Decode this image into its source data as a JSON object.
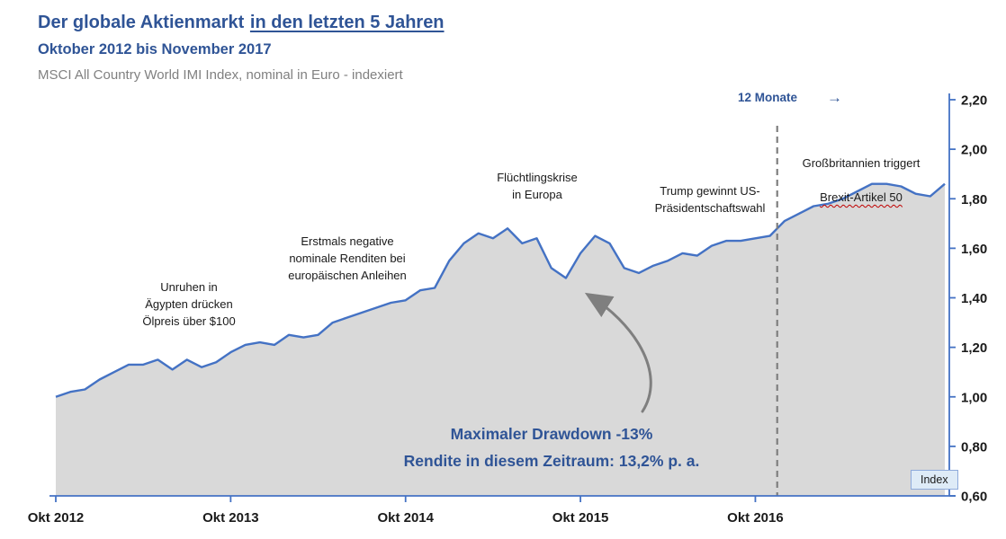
{
  "header": {
    "title_main": "Der globale Aktienmarkt",
    "title_underlined": "in den letzten 5 Jahren",
    "subtitle": "Oktober 2012 bis November 2017",
    "source_line": "MSCI All Country World IMI Index, nominal in Euro - indexiert"
  },
  "colors": {
    "title_blue": "#2F5496",
    "line_blue": "#4472C4",
    "area_gray": "#D9D9D9",
    "dashed_gray": "#7F7F7F",
    "annotation_text": "#1A1A1A",
    "badge_fill": "#DEEBF7",
    "badge_border": "#8EAADB",
    "wavy_underline_red": "#C00000"
  },
  "annotations": {
    "egypt": {
      "text": "Unruhen in\nÄgypten drücken\nÖlpreis über $100"
    },
    "bonds": {
      "text": "Erstmals negative\nnominale Renditen bei\neuropäischen Anleihen"
    },
    "refugees": {
      "text": "Flüchtlingskrise\nin Europa"
    },
    "trump": {
      "text": "Trump gewinnt US-\nPräsidentschaftswahl"
    },
    "brexit": {
      "line1": "Großbritannien triggert",
      "line2": "Brexit-Artikel 50"
    },
    "twelve_months": {
      "label": "12 Monate",
      "arrow_icon": "→"
    },
    "drawdown": {
      "line1": "Maximaler Drawdown -13%",
      "line2": "Rendite in diesem Zeitraum: 13,2% p. a."
    },
    "index_badge": "Index"
  },
  "chart_data": {
    "type": "area",
    "title": "Der globale Aktienmarkt in den letzten 5 Jahren",
    "subtitle": "Oktober 2012 bis November 2017",
    "series_name": "MSCI All Country World IMI Index, nominal in Euro - indexiert",
    "x_unit": "month",
    "x_start": "Okt 2012",
    "x_end": "Nov 2017",
    "x_tick_labels": [
      "Okt 2012",
      "Okt 2013",
      "Okt 2014",
      "Okt 2015",
      "Okt 2016"
    ],
    "x_tick_month_indices": [
      0,
      12,
      24,
      36,
      48
    ],
    "y_ticks": [
      "0,60",
      "0,80",
      "1,00",
      "1,20",
      "1,40",
      "1,60",
      "1,80",
      "2,00",
      "2,20"
    ],
    "y_tick_values": [
      0.6,
      0.8,
      1.0,
      1.2,
      1.4,
      1.6,
      1.8,
      2.0,
      2.2
    ],
    "ylim": [
      0.6,
      2.2
    ],
    "grid": false,
    "legend": "Index",
    "legend_position": "bottom-right",
    "dashed_marker_month_index": 49.5,
    "dashed_marker_meaning": "12 Monate",
    "values": [
      1.0,
      1.02,
      1.03,
      1.07,
      1.1,
      1.13,
      1.13,
      1.15,
      1.11,
      1.15,
      1.12,
      1.14,
      1.18,
      1.21,
      1.22,
      1.21,
      1.25,
      1.24,
      1.25,
      1.3,
      1.32,
      1.34,
      1.36,
      1.38,
      1.39,
      1.43,
      1.44,
      1.55,
      1.62,
      1.66,
      1.64,
      1.68,
      1.62,
      1.64,
      1.52,
      1.48,
      1.58,
      1.65,
      1.62,
      1.52,
      1.5,
      1.53,
      1.55,
      1.58,
      1.57,
      1.61,
      1.63,
      1.63,
      1.64,
      1.65,
      1.71,
      1.74,
      1.77,
      1.78,
      1.8,
      1.83,
      1.86,
      1.86,
      1.85,
      1.82,
      1.81,
      1.86
    ]
  }
}
